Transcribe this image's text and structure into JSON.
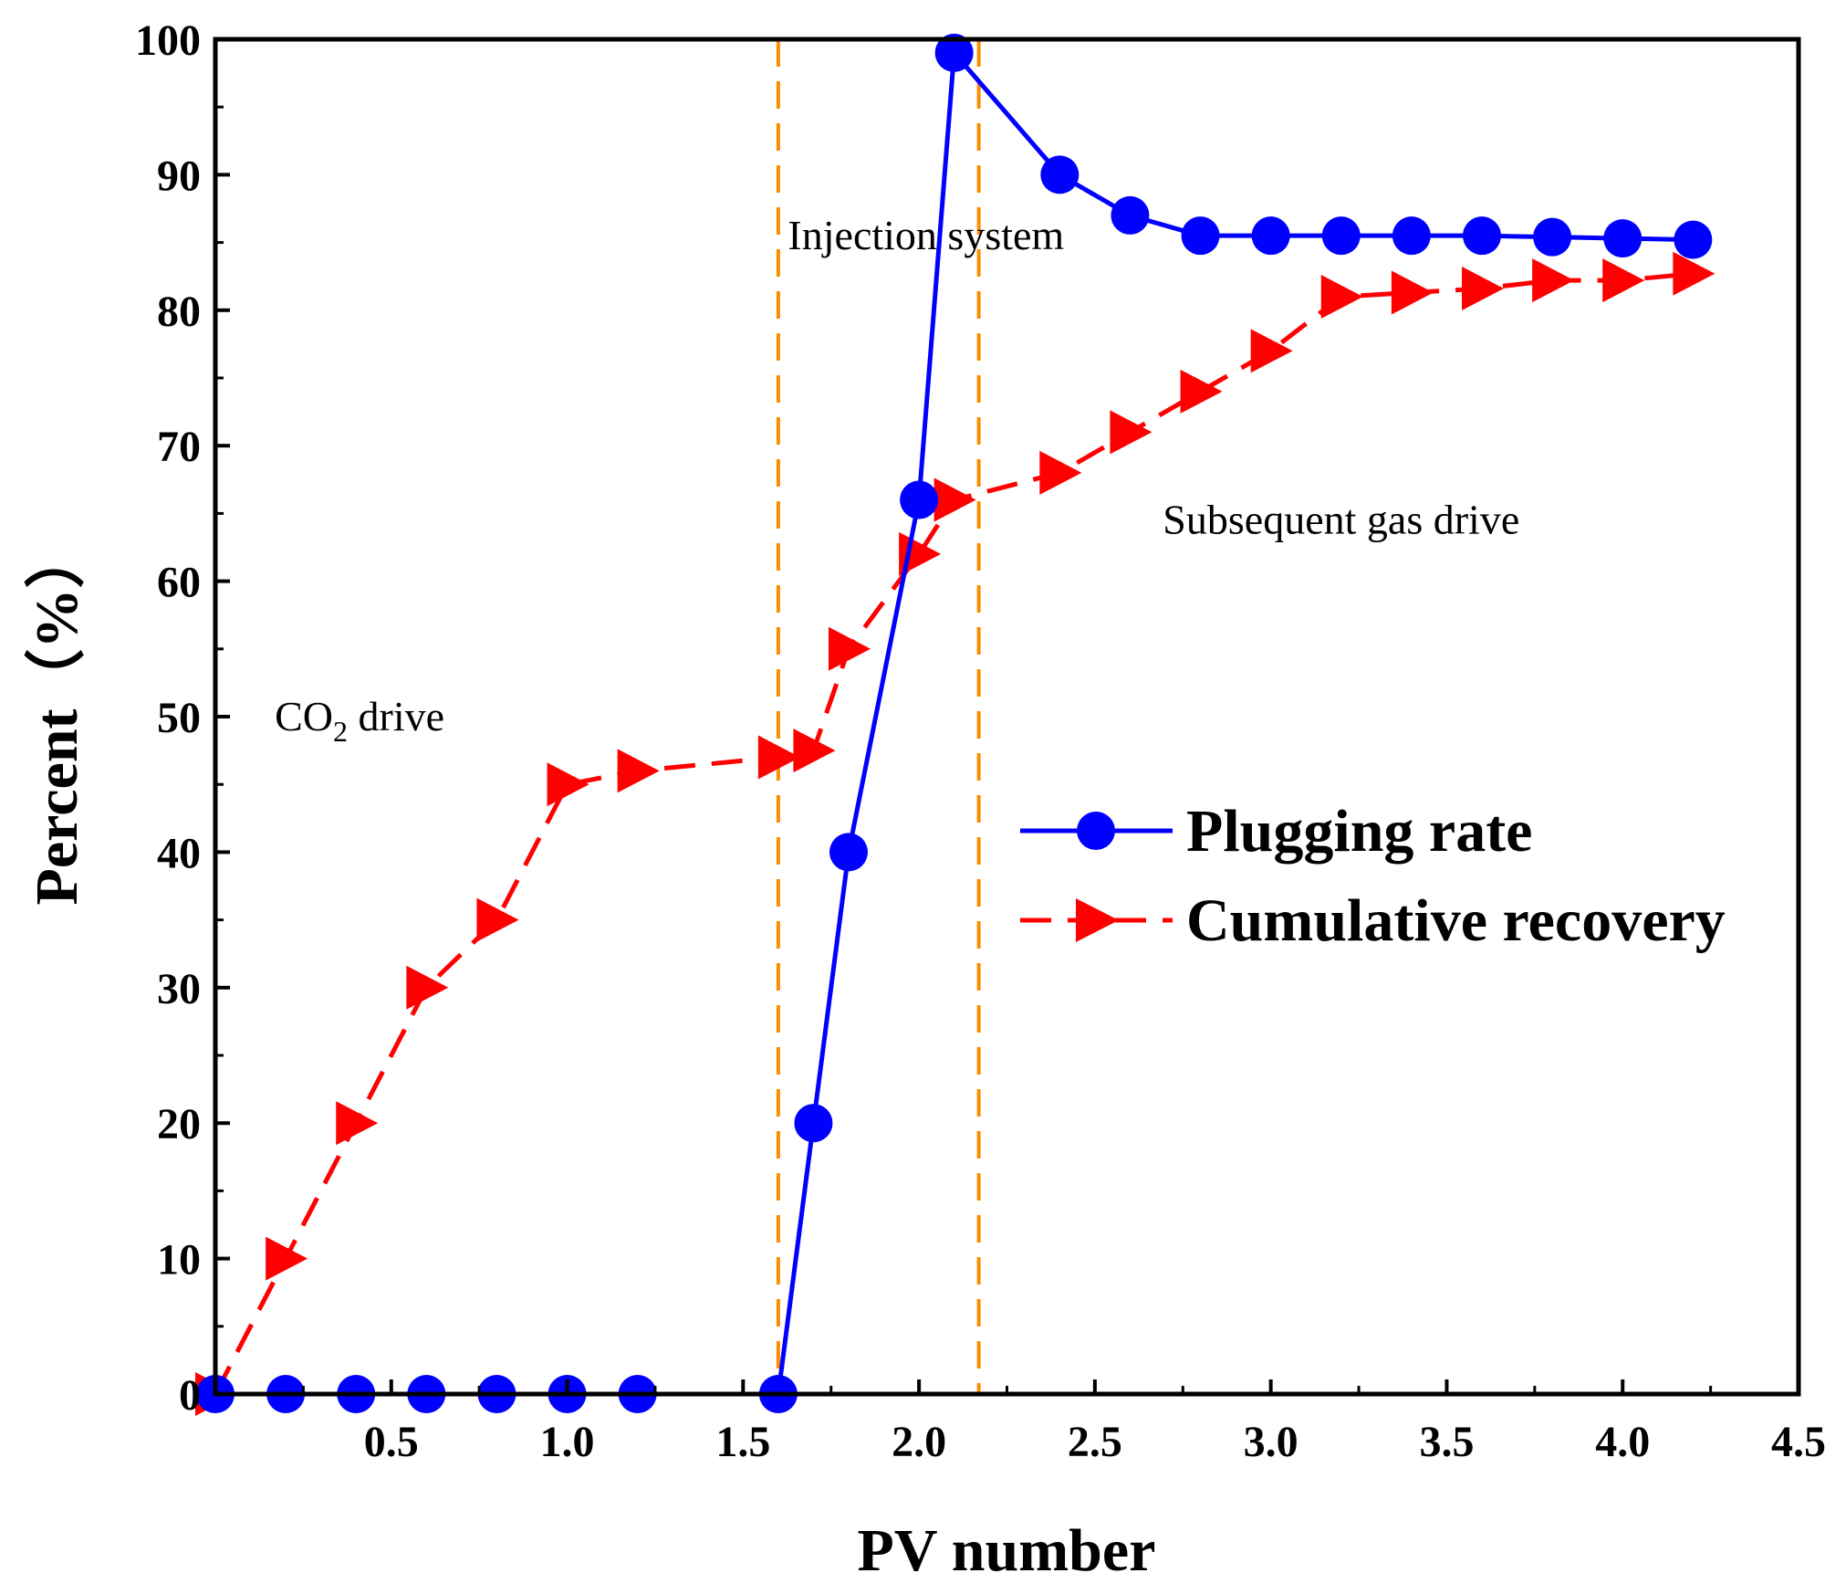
{
  "chart_data": {
    "type": "line",
    "xlabel": "PV number",
    "ylabel": "Percent（%）",
    "xlim": [
      0,
      4.5
    ],
    "ylim": [
      0,
      100
    ],
    "x_ticks": [
      0.5,
      1.0,
      1.5,
      2.0,
      2.5,
      3.0,
      3.5,
      4.0,
      4.5
    ],
    "x_tick_labels": [
      "0.5",
      "1.0",
      "1.5",
      "2.0",
      "2.5",
      "3.0",
      "3.5",
      "4.0",
      "4.5"
    ],
    "y_ticks": [
      0,
      10,
      20,
      30,
      40,
      50,
      60,
      70,
      80,
      90,
      100
    ],
    "y_tick_labels": [
      "0",
      "10",
      "20",
      "30",
      "40",
      "50",
      "60",
      "70",
      "80",
      "90",
      "100"
    ],
    "grid": false,
    "legend_position": "center-right",
    "series": [
      {
        "name": "Plugging rate",
        "color": "#0000ff",
        "line_style": "solid",
        "marker": "circle",
        "x": [
          0,
          0.2,
          0.4,
          0.6,
          0.8,
          1.0,
          1.2,
          1.6,
          1.7,
          1.8,
          2.0,
          2.1,
          2.4,
          2.6,
          2.8,
          3.0,
          3.2,
          3.4,
          3.6,
          3.8,
          4.0,
          4.2
        ],
        "y": [
          0,
          0,
          0,
          0,
          0,
          0,
          0,
          0,
          20,
          40,
          66,
          99,
          90,
          87,
          85.5,
          85.5,
          85.5,
          85.5,
          85.5,
          85.4,
          85.3,
          85.2
        ]
      },
      {
        "name": "Cumulative recovery",
        "color": "#ff0000",
        "line_style": "dashed",
        "marker": "triangle-right",
        "x": [
          0,
          0.2,
          0.4,
          0.6,
          0.8,
          1.0,
          1.2,
          1.6,
          1.7,
          1.8,
          2.0,
          2.1,
          2.4,
          2.6,
          2.8,
          3.0,
          3.2,
          3.4,
          3.6,
          3.8,
          4.0,
          4.2
        ],
        "y": [
          0,
          10,
          20,
          30,
          35,
          45,
          46,
          47,
          47.5,
          55,
          62,
          66,
          68,
          71,
          74,
          77,
          81,
          81.3,
          81.6,
          82.2,
          82.2,
          82.7
        ]
      }
    ],
    "vertical_lines": [
      {
        "x": 1.6,
        "color": "#ff8c00",
        "line_style": "dashed"
      },
      {
        "x": 2.17,
        "color": "#ff8c00",
        "line_style": "dashed"
      }
    ],
    "annotations": [
      {
        "text_main": "CO",
        "text_sub": "2",
        "text_rest": " drive",
        "x": 0.41,
        "y": 49
      },
      {
        "text_main": "Injection system",
        "x": 2.02,
        "y": 84.5
      },
      {
        "text_main": "Subsequent gas drive",
        "x": 3.2,
        "y": 63.5
      }
    ]
  }
}
